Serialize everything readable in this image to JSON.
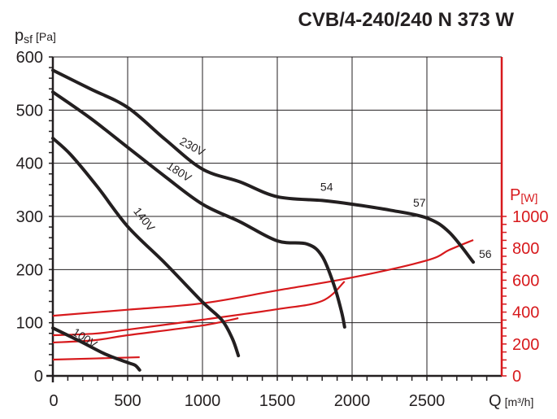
{
  "chart_data": {
    "type": "line",
    "title": "CVB/4-240/240 N 373 W",
    "xlabel": "Q [m³/h]",
    "xlabel_main": "Q",
    "xlabel_unit": "[m³/h]",
    "ylabel_main": "p",
    "ylabel_sub": "sf",
    "ylabel_unit": "[Pa]",
    "y2label_main": "P",
    "y2label_unit": "[W]",
    "xlim": [
      0,
      3000
    ],
    "ylim": [
      0,
      600
    ],
    "y2lim": [
      0,
      2000
    ],
    "xticks": [
      0,
      500,
      1000,
      1500,
      2000,
      2500
    ],
    "yticks": [
      0,
      100,
      200,
      300,
      400,
      500,
      600
    ],
    "y2ticks": [
      0,
      200,
      400,
      600,
      800,
      1000
    ],
    "grid": true,
    "colors": {
      "pressure": "#231f20",
      "power": "#d7191c",
      "grid": "#231f20"
    },
    "pressure_series": [
      {
        "name": "230V",
        "x": [
          0,
          250,
          500,
          750,
          1000,
          1250,
          1500,
          1800,
          2000,
          2250,
          2500,
          2650,
          2810
        ],
        "y": [
          575,
          540,
          505,
          445,
          389,
          365,
          337,
          330,
          323,
          312,
          297,
          270,
          214
        ]
      },
      {
        "name": "180V",
        "x": [
          0,
          250,
          500,
          750,
          1000,
          1250,
          1500,
          1700,
          1800,
          1880,
          1930,
          1950
        ],
        "y": [
          534,
          485,
          430,
          375,
          323,
          290,
          254,
          248,
          225,
          170,
          120,
          92
        ]
      },
      {
        "name": "140V",
        "x": [
          0,
          120,
          300,
          500,
          750,
          1000,
          1130,
          1200,
          1240
        ],
        "y": [
          447,
          416,
          355,
          281,
          212,
          139,
          105,
          70,
          38
        ]
      },
      {
        "name": "100V",
        "x": [
          0,
          190,
          350,
          500,
          550,
          580
        ],
        "y": [
          90,
          64,
          41,
          25,
          20,
          11
        ]
      }
    ],
    "power_series": [
      {
        "voltage": "230V",
        "x": [
          0,
          500,
          1000,
          1500,
          2000,
          2500,
          2650,
          2810
        ],
        "y": [
          377,
          415,
          455,
          536,
          617,
          724,
          790,
          852
        ]
      },
      {
        "voltage": "180V",
        "x": [
          0,
          280,
          500,
          1000,
          1500,
          1800,
          1950
        ],
        "y": [
          255,
          265,
          290,
          352,
          418,
          470,
          592
        ]
      },
      {
        "voltage": "140V",
        "x": [
          0,
          280,
          500,
          1000,
          1240
        ],
        "y": [
          209,
          224,
          255,
          316,
          362
        ]
      },
      {
        "voltage": "100V",
        "x": [
          0,
          580
        ],
        "y": [
          102,
          117
        ]
      }
    ],
    "annotations": [
      {
        "text": "230V",
        "x": 920,
        "y": 425
      },
      {
        "text": "180V",
        "x": 830,
        "y": 378
      },
      {
        "text": "140V",
        "x": 590,
        "y": 290
      },
      {
        "text": "100V",
        "x": 200,
        "y": 65
      },
      {
        "text": "54",
        "x": 1830,
        "y": 348
      },
      {
        "text": "57",
        "x": 2450,
        "y": 318
      },
      {
        "text": "56",
        "x": 2890,
        "y": 222
      }
    ]
  }
}
